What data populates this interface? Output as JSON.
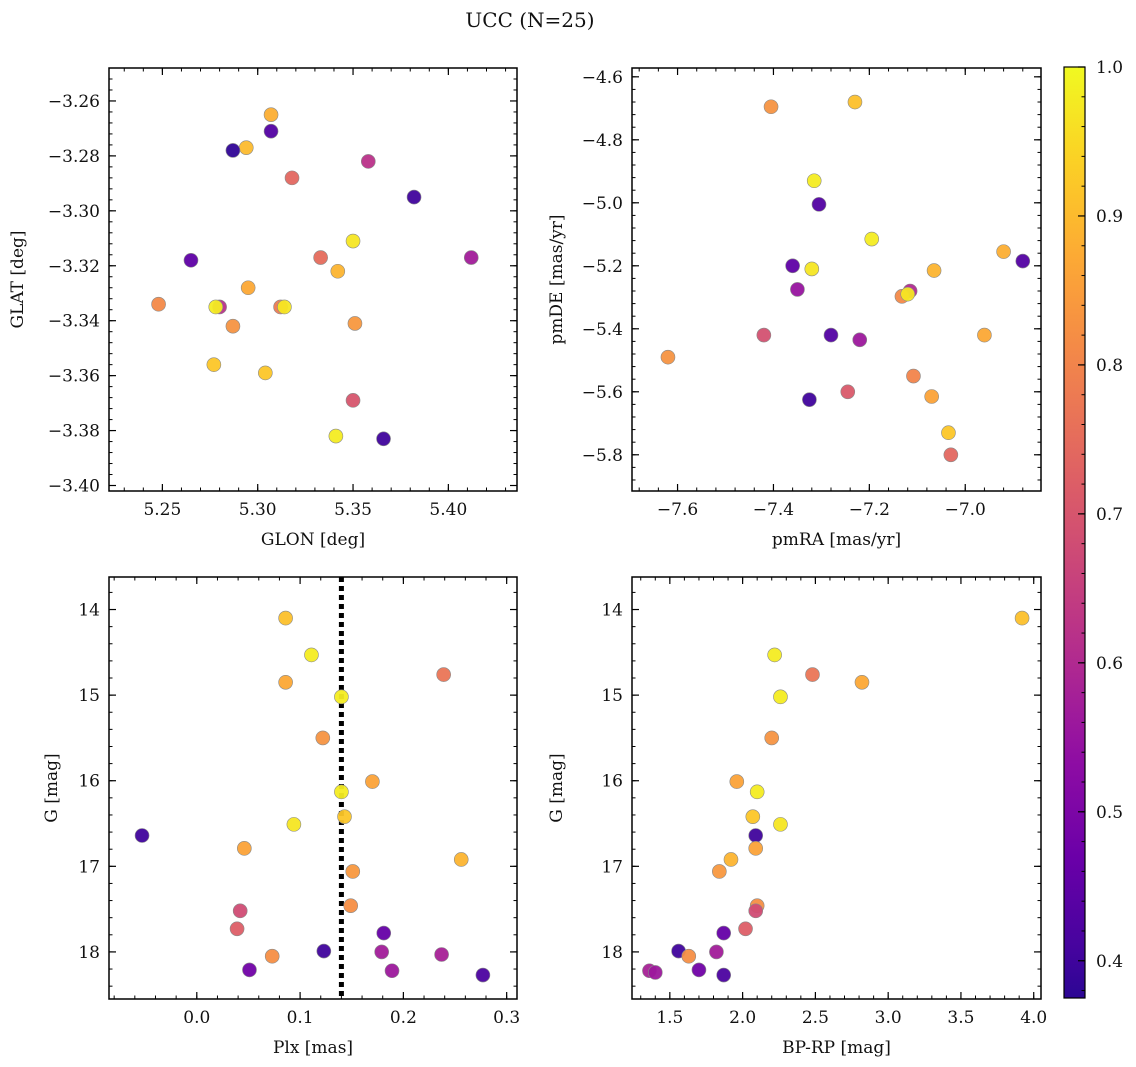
{
  "figure": {
    "title": "UCC (N=25)"
  },
  "colorbar": {
    "colormap": "plasma",
    "vmin": 0.375,
    "vmax": 1.0,
    "ticks": [
      0.4,
      0.5,
      0.6,
      0.7,
      0.8,
      0.9,
      1.0
    ],
    "tick_labels": [
      "0.4",
      "0.5",
      "0.6",
      "0.7",
      "0.8",
      "0.9",
      "1.0"
    ]
  },
  "chart_data": [
    {
      "type": "scatter",
      "id": "sky",
      "xlabel": "GLON [deg]",
      "ylabel": "GLAT [deg]",
      "xlim": [
        5.222,
        5.436
      ],
      "ylim": [
        -3.402,
        -3.248
      ],
      "xticks": [
        5.25,
        5.3,
        5.35,
        5.4
      ],
      "xtick_labels": [
        "5.25",
        "5.30",
        "5.35",
        "5.40"
      ],
      "yticks": [
        -3.26,
        -3.28,
        -3.3,
        -3.32,
        -3.34,
        -3.36,
        -3.38,
        -3.4
      ],
      "ytick_labels": [
        "−3.26",
        "−3.28",
        "−3.30",
        "−3.32",
        "−3.34",
        "−3.36",
        "−3.38",
        "−3.40"
      ],
      "points": [
        {
          "x": 5.307,
          "y": -3.265,
          "c": 0.88
        },
        {
          "x": 5.307,
          "y": -3.271,
          "c": 0.43
        },
        {
          "x": 5.294,
          "y": -3.277,
          "c": 0.9
        },
        {
          "x": 5.287,
          "y": -3.278,
          "c": 0.38
        },
        {
          "x": 5.358,
          "y": -3.282,
          "c": 0.62
        },
        {
          "x": 5.318,
          "y": -3.288,
          "c": 0.74
        },
        {
          "x": 5.382,
          "y": -3.295,
          "c": 0.4
        },
        {
          "x": 5.35,
          "y": -3.311,
          "c": 0.97
        },
        {
          "x": 5.265,
          "y": -3.318,
          "c": 0.45
        },
        {
          "x": 5.412,
          "y": -3.317,
          "c": 0.57
        },
        {
          "x": 5.333,
          "y": -3.317,
          "c": 0.75
        },
        {
          "x": 5.342,
          "y": -3.322,
          "c": 0.89
        },
        {
          "x": 5.295,
          "y": -3.328,
          "c": 0.87
        },
        {
          "x": 5.248,
          "y": -3.334,
          "c": 0.81
        },
        {
          "x": 5.28,
          "y": -3.335,
          "c": 0.62
        },
        {
          "x": 5.278,
          "y": -3.335,
          "c": 0.98
        },
        {
          "x": 5.312,
          "y": -3.335,
          "c": 0.78
        },
        {
          "x": 5.314,
          "y": -3.335,
          "c": 0.97
        },
        {
          "x": 5.287,
          "y": -3.342,
          "c": 0.83
        },
        {
          "x": 5.351,
          "y": -3.341,
          "c": 0.84
        },
        {
          "x": 5.277,
          "y": -3.356,
          "c": 0.92
        },
        {
          "x": 5.304,
          "y": -3.359,
          "c": 0.92
        },
        {
          "x": 5.35,
          "y": -3.369,
          "c": 0.7
        },
        {
          "x": 5.341,
          "y": -3.382,
          "c": 0.98
        },
        {
          "x": 5.366,
          "y": -3.383,
          "c": 0.4
        }
      ]
    },
    {
      "type": "scatter",
      "id": "pm",
      "xlabel": "pmRA [mas/yr]",
      "ylabel": "pmDE [mas/yr]",
      "xlim": [
        -7.695,
        -6.842
      ],
      "ylim": [
        -5.915,
        -4.572
      ],
      "xticks": [
        -7.6,
        -7.4,
        -7.2,
        -7.0
      ],
      "xtick_labels": [
        "−7.6",
        "−7.4",
        "−7.2",
        "−7.0"
      ],
      "yticks": [
        -4.6,
        -4.8,
        -5.0,
        -5.2,
        -5.4,
        -5.6,
        -5.8
      ],
      "ytick_labels": [
        "−4.6",
        "−4.8",
        "−5.0",
        "−5.2",
        "−5.4",
        "−5.6",
        "−5.8"
      ],
      "points": [
        {
          "x": -7.23,
          "y": -4.68,
          "c": 0.91
        },
        {
          "x": -7.405,
          "y": -4.695,
          "c": 0.83
        },
        {
          "x": -7.315,
          "y": -4.93,
          "c": 0.98
        },
        {
          "x": -7.305,
          "y": -5.005,
          "c": 0.43
        },
        {
          "x": -7.195,
          "y": -5.115,
          "c": 0.98
        },
        {
          "x": -6.92,
          "y": -5.155,
          "c": 0.88
        },
        {
          "x": -6.88,
          "y": -5.185,
          "c": 0.43
        },
        {
          "x": -7.36,
          "y": -5.2,
          "c": 0.45
        },
        {
          "x": -7.32,
          "y": -5.21,
          "c": 0.97
        },
        {
          "x": -7.065,
          "y": -5.215,
          "c": 0.89
        },
        {
          "x": -7.35,
          "y": -5.275,
          "c": 0.55
        },
        {
          "x": -7.115,
          "y": -5.28,
          "c": 0.6
        },
        {
          "x": -7.132,
          "y": -5.297,
          "c": 0.81
        },
        {
          "x": -7.12,
          "y": -5.29,
          "c": 0.97
        },
        {
          "x": -7.42,
          "y": -5.42,
          "c": 0.69
        },
        {
          "x": -7.28,
          "y": -5.42,
          "c": 0.43
        },
        {
          "x": -6.96,
          "y": -5.42,
          "c": 0.87
        },
        {
          "x": -7.22,
          "y": -5.435,
          "c": 0.56
        },
        {
          "x": -7.62,
          "y": -5.49,
          "c": 0.83
        },
        {
          "x": -7.108,
          "y": -5.55,
          "c": 0.8
        },
        {
          "x": -7.245,
          "y": -5.6,
          "c": 0.71
        },
        {
          "x": -7.07,
          "y": -5.615,
          "c": 0.86
        },
        {
          "x": -7.325,
          "y": -5.625,
          "c": 0.4
        },
        {
          "x": -7.035,
          "y": -5.73,
          "c": 0.92
        },
        {
          "x": -7.03,
          "y": -5.8,
          "c": 0.74
        }
      ]
    },
    {
      "type": "scatter",
      "id": "plx",
      "xlabel": "Plx [mas]",
      "ylabel": "G [mag]",
      "y_inverted": true,
      "xlim": [
        -0.085,
        0.31
      ],
      "ylim": [
        18.55,
        13.62
      ],
      "xticks": [
        0.0,
        0.1,
        0.2,
        0.3
      ],
      "xtick_labels": [
        "0.0",
        "0.1",
        "0.2",
        "0.3"
      ],
      "yticks": [
        14,
        15,
        16,
        17,
        18
      ],
      "ytick_labels": [
        "14",
        "15",
        "16",
        "17",
        "18"
      ],
      "vline": {
        "x": 0.14,
        "style": "dotted",
        "color": "#000000"
      },
      "points": [
        {
          "x": 0.086,
          "y": 14.1,
          "c": 0.91
        },
        {
          "x": 0.111,
          "y": 14.53,
          "c": 0.98
        },
        {
          "x": 0.239,
          "y": 14.76,
          "c": 0.77
        },
        {
          "x": 0.086,
          "y": 14.85,
          "c": 0.87
        },
        {
          "x": 0.14,
          "y": 15.02,
          "c": 0.98
        },
        {
          "x": 0.122,
          "y": 15.5,
          "c": 0.83
        },
        {
          "x": 0.17,
          "y": 16.01,
          "c": 0.86
        },
        {
          "x": 0.14,
          "y": 16.13,
          "c": 0.98
        },
        {
          "x": 0.143,
          "y": 16.42,
          "c": 0.92
        },
        {
          "x": 0.094,
          "y": 16.51,
          "c": 0.97
        },
        {
          "x": -0.053,
          "y": 16.64,
          "c": 0.4
        },
        {
          "x": 0.046,
          "y": 16.79,
          "c": 0.86
        },
        {
          "x": 0.256,
          "y": 16.92,
          "c": 0.89
        },
        {
          "x": 0.151,
          "y": 17.06,
          "c": 0.84
        },
        {
          "x": 0.149,
          "y": 17.46,
          "c": 0.82
        },
        {
          "x": 0.042,
          "y": 17.52,
          "c": 0.68
        },
        {
          "x": 0.039,
          "y": 17.73,
          "c": 0.72
        },
        {
          "x": 0.181,
          "y": 17.78,
          "c": 0.46
        },
        {
          "x": 0.123,
          "y": 17.99,
          "c": 0.4
        },
        {
          "x": 0.179,
          "y": 18.0,
          "c": 0.57
        },
        {
          "x": 0.237,
          "y": 18.03,
          "c": 0.58
        },
        {
          "x": 0.073,
          "y": 18.05,
          "c": 0.82
        },
        {
          "x": 0.051,
          "y": 18.21,
          "c": 0.48
        },
        {
          "x": 0.189,
          "y": 18.22,
          "c": 0.56
        },
        {
          "x": 0.277,
          "y": 18.27,
          "c": 0.42
        }
      ]
    },
    {
      "type": "scatter",
      "id": "cmd",
      "xlabel": "BP-RP [mag]",
      "ylabel": "G [mag]",
      "y_inverted": true,
      "xlim": [
        1.24,
        4.05
      ],
      "ylim": [
        18.55,
        13.62
      ],
      "xticks": [
        1.5,
        2.0,
        2.5,
        3.0,
        3.5,
        4.0
      ],
      "xtick_labels": [
        "1.5",
        "2.0",
        "2.5",
        "3.0",
        "3.5",
        "4.0"
      ],
      "yticks": [
        14,
        15,
        16,
        17,
        18
      ],
      "ytick_labels": [
        "14",
        "15",
        "16",
        "17",
        "18"
      ],
      "points": [
        {
          "x": 3.92,
          "y": 14.1,
          "c": 0.91
        },
        {
          "x": 2.22,
          "y": 14.53,
          "c": 0.98
        },
        {
          "x": 2.48,
          "y": 14.76,
          "c": 0.77
        },
        {
          "x": 2.82,
          "y": 14.85,
          "c": 0.87
        },
        {
          "x": 2.26,
          "y": 15.02,
          "c": 0.98
        },
        {
          "x": 2.2,
          "y": 15.5,
          "c": 0.83
        },
        {
          "x": 1.96,
          "y": 16.01,
          "c": 0.86
        },
        {
          "x": 2.1,
          "y": 16.13,
          "c": 0.98
        },
        {
          "x": 2.07,
          "y": 16.42,
          "c": 0.92
        },
        {
          "x": 2.26,
          "y": 16.51,
          "c": 0.97
        },
        {
          "x": 2.09,
          "y": 16.64,
          "c": 0.4
        },
        {
          "x": 2.09,
          "y": 16.79,
          "c": 0.86
        },
        {
          "x": 1.92,
          "y": 16.92,
          "c": 0.89
        },
        {
          "x": 1.84,
          "y": 17.06,
          "c": 0.84
        },
        {
          "x": 2.1,
          "y": 17.46,
          "c": 0.82
        },
        {
          "x": 2.09,
          "y": 17.52,
          "c": 0.68
        },
        {
          "x": 2.02,
          "y": 17.73,
          "c": 0.72
        },
        {
          "x": 1.87,
          "y": 17.78,
          "c": 0.46
        },
        {
          "x": 1.56,
          "y": 17.99,
          "c": 0.4
        },
        {
          "x": 1.82,
          "y": 18.0,
          "c": 0.57
        },
        {
          "x": 1.36,
          "y": 18.22,
          "c": 0.58
        },
        {
          "x": 1.63,
          "y": 18.05,
          "c": 0.82
        },
        {
          "x": 1.7,
          "y": 18.21,
          "c": 0.48
        },
        {
          "x": 1.87,
          "y": 18.27,
          "c": 0.42
        },
        {
          "x": 1.4,
          "y": 18.24,
          "c": 0.56
        }
      ]
    }
  ]
}
